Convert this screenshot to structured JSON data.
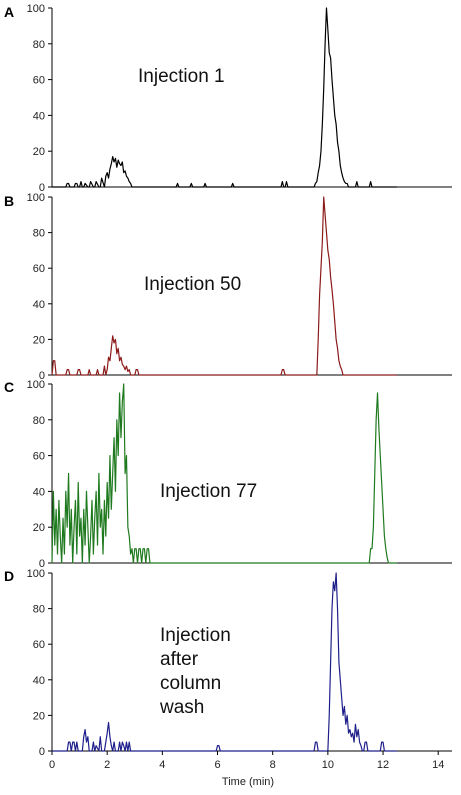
{
  "chart_data": {
    "type": "line",
    "xlabel": "Time (min)",
    "xlim": [
      0,
      14.5
    ],
    "x_ticks": [
      "0",
      "2",
      "4",
      "6",
      "8",
      "10",
      "12",
      "14"
    ],
    "ylim": [
      0,
      100
    ],
    "y_ticks": [
      "0",
      "20",
      "40",
      "60",
      "80",
      "100"
    ],
    "grid": false,
    "panels": [
      {
        "label": "A",
        "annotation": [
          "Injection 1"
        ],
        "color": "#000000",
        "x": [
          0.0,
          0.5,
          0.55,
          0.6,
          0.65,
          0.8,
          0.85,
          0.9,
          0.95,
          1.0,
          1.05,
          1.1,
          1.15,
          1.2,
          1.3,
          1.35,
          1.4,
          1.5,
          1.55,
          1.6,
          1.7,
          1.75,
          1.8,
          1.9,
          1.95,
          2.0,
          2.05,
          2.1,
          2.15,
          2.2,
          2.25,
          2.3,
          2.35,
          2.4,
          2.45,
          2.5,
          2.55,
          2.6,
          2.65,
          2.7,
          2.75,
          2.8,
          2.85,
          2.9,
          3.0,
          4.5,
          4.55,
          4.6,
          5.0,
          5.05,
          5.1,
          5.5,
          5.55,
          5.6,
          6.5,
          6.55,
          6.6,
          8.3,
          8.35,
          8.4,
          8.45,
          8.5,
          8.55,
          8.6,
          9.5,
          9.55,
          9.6,
          9.65,
          9.7,
          9.75,
          9.8,
          9.85,
          9.9,
          9.95,
          10.0,
          10.05,
          10.1,
          10.15,
          10.2,
          10.25,
          10.3,
          10.35,
          10.4,
          10.45,
          10.5,
          10.55,
          10.6,
          10.65,
          10.7,
          10.75,
          10.8,
          11.0,
          11.05,
          11.1,
          11.5,
          11.55,
          11.6,
          12.5
        ],
        "y": [
          0,
          0,
          2,
          2,
          0,
          0,
          2,
          2,
          0,
          0,
          3,
          0,
          0,
          2,
          0,
          0,
          3,
          0,
          0,
          3,
          0,
          0,
          5,
          0,
          6,
          8,
          5,
          10,
          13,
          17,
          14,
          16,
          11,
          15,
          13,
          12,
          14,
          8,
          9,
          6,
          5,
          3,
          2,
          0,
          0,
          0,
          2,
          0,
          0,
          2,
          0,
          0,
          2,
          0,
          0,
          2,
          0,
          0,
          3,
          0,
          0,
          3,
          0,
          0,
          0,
          2,
          3,
          8,
          12,
          20,
          35,
          55,
          80,
          100,
          88,
          75,
          72,
          60,
          50,
          40,
          35,
          25,
          20,
          12,
          8,
          5,
          3,
          2,
          2,
          0,
          0,
          0,
          3,
          0,
          0,
          3,
          0,
          0
        ]
      },
      {
        "label": "B",
        "annotation": [
          "Injection 50"
        ],
        "color": "#8b1a1a",
        "x": [
          0.0,
          0.05,
          0.1,
          0.15,
          0.5,
          0.55,
          0.6,
          0.65,
          0.9,
          0.95,
          1.0,
          1.05,
          1.3,
          1.35,
          1.4,
          1.6,
          1.65,
          1.7,
          1.85,
          1.9,
          1.95,
          2.0,
          2.05,
          2.1,
          2.15,
          2.2,
          2.25,
          2.3,
          2.35,
          2.4,
          2.45,
          2.5,
          2.55,
          2.6,
          2.65,
          2.7,
          2.75,
          2.8,
          2.85,
          3.0,
          3.05,
          3.1,
          3.15,
          8.3,
          8.35,
          8.4,
          8.45,
          9.6,
          9.65,
          9.7,
          9.75,
          9.8,
          9.85,
          9.9,
          9.95,
          10.0,
          10.05,
          10.1,
          10.15,
          10.2,
          10.25,
          10.3,
          10.35,
          10.4,
          10.45,
          10.5,
          10.55,
          12.5
        ],
        "y": [
          0,
          8,
          8,
          0,
          0,
          3,
          3,
          0,
          0,
          3,
          3,
          0,
          0,
          3,
          0,
          0,
          3,
          0,
          0,
          5,
          0,
          3,
          10,
          8,
          15,
          22,
          18,
          20,
          12,
          15,
          8,
          10,
          6,
          5,
          3,
          5,
          2,
          3,
          0,
          0,
          3,
          3,
          0,
          0,
          3,
          3,
          0,
          0,
          20,
          45,
          60,
          75,
          100,
          90,
          80,
          70,
          65,
          55,
          48,
          40,
          30,
          20,
          15,
          8,
          5,
          3,
          0,
          0
        ]
      },
      {
        "label": "C",
        "annotation": [
          "Injection 77"
        ],
        "color": "#1f7a1f",
        "x": [
          0.0,
          0.05,
          0.1,
          0.15,
          0.2,
          0.25,
          0.3,
          0.35,
          0.4,
          0.45,
          0.5,
          0.55,
          0.6,
          0.65,
          0.7,
          0.75,
          0.8,
          0.85,
          0.9,
          0.95,
          1.0,
          1.05,
          1.1,
          1.15,
          1.2,
          1.25,
          1.3,
          1.35,
          1.4,
          1.45,
          1.5,
          1.55,
          1.6,
          1.65,
          1.7,
          1.75,
          1.8,
          1.85,
          1.9,
          1.95,
          2.0,
          2.05,
          2.1,
          2.15,
          2.2,
          2.25,
          2.3,
          2.35,
          2.4,
          2.45,
          2.5,
          2.55,
          2.6,
          2.65,
          2.7,
          2.75,
          2.8,
          2.85,
          2.9,
          2.95,
          3.0,
          3.05,
          3.1,
          3.15,
          3.2,
          3.25,
          3.3,
          3.35,
          3.4,
          3.45,
          3.5,
          3.55,
          11.5,
          11.55,
          11.6,
          11.65,
          11.7,
          11.75,
          11.8,
          11.85,
          11.9,
          11.95,
          12.0,
          12.05,
          12.1,
          12.15,
          12.2,
          12.25,
          12.5
        ],
        "y": [
          0,
          40,
          10,
          30,
          5,
          35,
          15,
          0,
          25,
          5,
          40,
          20,
          50,
          10,
          30,
          0,
          20,
          35,
          5,
          45,
          15,
          25,
          0,
          30,
          10,
          40,
          20,
          0,
          15,
          35,
          5,
          25,
          40,
          10,
          50,
          20,
          30,
          5,
          35,
          15,
          45,
          25,
          60,
          30,
          50,
          70,
          40,
          80,
          60,
          95,
          70,
          90,
          100,
          50,
          60,
          20,
          15,
          5,
          8,
          0,
          8,
          8,
          0,
          8,
          8,
          0,
          8,
          8,
          0,
          8,
          8,
          0,
          0,
          8,
          8,
          20,
          50,
          80,
          95,
          75,
          60,
          45,
          30,
          15,
          8,
          3,
          0,
          0,
          0
        ]
      },
      {
        "label": "D",
        "annotation": [
          "Injection",
          "after",
          "column",
          "wash"
        ],
        "color": "#1f1f8b",
        "x": [
          0.0,
          0.55,
          0.6,
          0.65,
          0.7,
          0.75,
          0.8,
          0.85,
          0.9,
          0.95,
          1.1,
          1.15,
          1.2,
          1.25,
          1.3,
          1.35,
          1.45,
          1.5,
          1.55,
          1.6,
          1.7,
          1.75,
          1.8,
          1.9,
          1.95,
          2.0,
          2.05,
          2.1,
          2.15,
          2.2,
          2.25,
          2.3,
          2.4,
          2.45,
          2.5,
          2.55,
          2.6,
          2.65,
          2.7,
          2.75,
          2.8,
          2.85,
          2.9,
          5.95,
          6.0,
          6.05,
          6.1,
          9.5,
          9.55,
          9.6,
          9.65,
          10.0,
          10.05,
          10.1,
          10.15,
          10.2,
          10.25,
          10.3,
          10.35,
          10.4,
          10.45,
          10.5,
          10.55,
          10.6,
          10.65,
          10.7,
          10.75,
          10.8,
          10.85,
          10.9,
          10.95,
          11.0,
          11.05,
          11.1,
          11.15,
          11.2,
          11.25,
          11.3,
          11.35,
          11.4,
          11.45,
          11.5,
          11.9,
          11.95,
          12.0,
          12.05,
          12.5
        ],
        "y": [
          0,
          0,
          5,
          5,
          0,
          5,
          5,
          0,
          5,
          0,
          0,
          8,
          12,
          5,
          8,
          0,
          0,
          5,
          0,
          3,
          0,
          8,
          0,
          0,
          5,
          10,
          16,
          8,
          3,
          0,
          5,
          0,
          0,
          5,
          0,
          5,
          3,
          0,
          5,
          0,
          5,
          0,
          0,
          0,
          3,
          3,
          0,
          0,
          5,
          5,
          0,
          0,
          20,
          50,
          80,
          95,
          90,
          100,
          80,
          50,
          40,
          30,
          20,
          25,
          15,
          20,
          10,
          12,
          8,
          10,
          5,
          15,
          8,
          12,
          5,
          3,
          0,
          0,
          5,
          5,
          0,
          0,
          0,
          5,
          5,
          0,
          0
        ]
      }
    ]
  }
}
